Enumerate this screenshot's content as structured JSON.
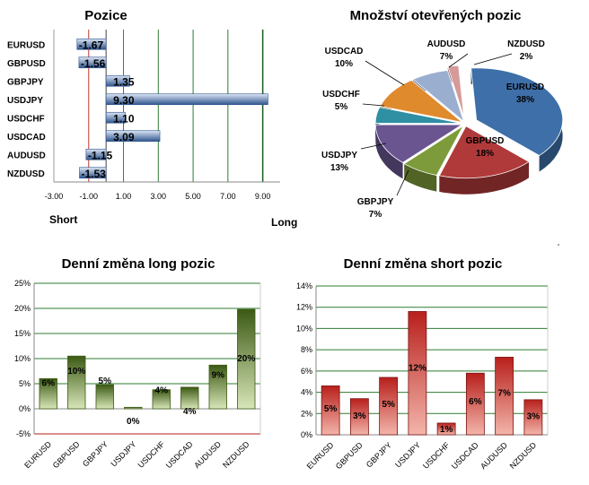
{
  "colors": {
    "green_grid": "#2e7d32",
    "red_grid": "#b71c1c",
    "pos_bar": "#3a5f95",
    "green_bar": "#4f6e1e",
    "red_bar": "#c0392b"
  },
  "chart_data": [
    {
      "id": "positions",
      "type": "bar",
      "orientation": "horizontal",
      "title": "Pozice",
      "categories": [
        "EURUSD",
        "GBPUSD",
        "GBPJPY",
        "USDJPY",
        "USDCHF",
        "USDCAD",
        "AUDUSD",
        "NZDUSD"
      ],
      "values": [
        -1.67,
        -1.56,
        1.35,
        9.3,
        1.1,
        3.09,
        -1.15,
        -1.53
      ],
      "value_labels": [
        "-1.67",
        "-1.56",
        "1.35",
        "9.30",
        "1.10",
        "3.09",
        "-1.15",
        "-1.53"
      ],
      "x_ticks": [
        "-3.00",
        "-1.00",
        "1.00",
        "3.00",
        "5.00",
        "7.00",
        "9.00"
      ],
      "xlim": [
        -3,
        10
      ],
      "left_label": "Short",
      "right_label": "Long"
    },
    {
      "id": "open_positions",
      "type": "pie",
      "title": "Množství otevřených pozic",
      "slices": [
        {
          "label": "EURUSD",
          "percent": "38%",
          "value": 38,
          "color": "#3e6fa8"
        },
        {
          "label": "GBPUSD",
          "percent": "18%",
          "value": 18,
          "color": "#b03a3a"
        },
        {
          "label": "GBPJPY",
          "percent": "7%",
          "value": 7,
          "color": "#7d9b3a"
        },
        {
          "label": "USDJPY",
          "percent": "13%",
          "value": 13,
          "color": "#6a5591"
        },
        {
          "label": "USDCHF",
          "percent": "5%",
          "value": 5,
          "color": "#2f8fa3"
        },
        {
          "label": "USDCAD",
          "percent": "10%",
          "value": 10,
          "color": "#e08a2e"
        },
        {
          "label": "AUDUSD",
          "percent": "7%",
          "value": 7,
          "color": "#9aaed0"
        },
        {
          "label": "NZDUSD",
          "percent": "2%",
          "value": 2,
          "color": "#d59a9a"
        }
      ]
    },
    {
      "id": "daily_long",
      "type": "bar",
      "title": "Denní změna long pozic",
      "categories": [
        "EURUSD",
        "GBPUSD",
        "GBPJPY",
        "USDJPY",
        "USDCHF",
        "USDCAD",
        "AUDUSD",
        "NZDUSD"
      ],
      "values": [
        6,
        10.5,
        4.8,
        0.3,
        3.8,
        4.3,
        8.7,
        19.8
      ],
      "value_labels": [
        "6%",
        "10%",
        "5%",
        "0%",
        "4%",
        "4%",
        "9%",
        "20%"
      ],
      "y_ticks": [
        "25%",
        "20%",
        "15%",
        "10%",
        "5%",
        "0%",
        "-5%"
      ],
      "ylim": [
        -5,
        25
      ]
    },
    {
      "id": "daily_short",
      "type": "bar",
      "title": "Denní změna short pozic",
      "categories": [
        "EURUSD",
        "GBPUSD",
        "GBPJPY",
        "USDJPY",
        "USDCHF",
        "USDCAD",
        "AUDUSD",
        "NZDUSD"
      ],
      "values": [
        4.6,
        3.4,
        5.4,
        11.6,
        1.1,
        5.8,
        7.3,
        3.3
      ],
      "value_labels": [
        "5%",
        "3%",
        "5%",
        "12%",
        "1%",
        "6%",
        "7%",
        "3%"
      ],
      "y_ticks": [
        "14%",
        "12%",
        "10%",
        "8%",
        "6%",
        "4%",
        "2%",
        "0%"
      ],
      "ylim": [
        0,
        14
      ]
    }
  ]
}
